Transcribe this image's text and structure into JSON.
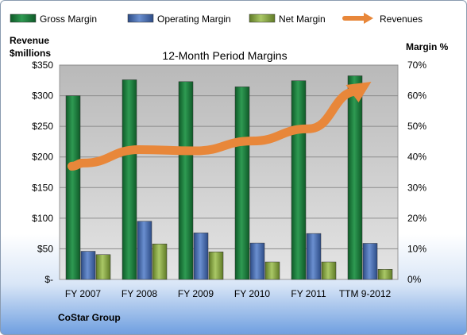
{
  "chart_data": {
    "type": "bar",
    "title": "12-Month Period Margins",
    "categories": [
      "FY 2007",
      "FY 2008",
      "FY 2009",
      "FY 2010",
      "FY 2011",
      "TTM 9-2012"
    ],
    "series": [
      {
        "name": "Gross Margin",
        "axis": "right",
        "unit": "%",
        "values": [
          60,
          65.2,
          64.6,
          62.9,
          64.9,
          66.5
        ],
        "color": "#1f7a3c"
      },
      {
        "name": "Operating Margin",
        "axis": "right",
        "unit": "%",
        "values": [
          9.2,
          19.0,
          15.2,
          11.9,
          15.0,
          11.8
        ],
        "color": "#4a6fb0"
      },
      {
        "name": "Net Margin",
        "axis": "right",
        "unit": "%",
        "values": [
          8.1,
          11.6,
          9.0,
          5.7,
          5.7,
          3.3
        ],
        "color": "#8fae4a"
      },
      {
        "name": "Revenues",
        "axis": "left",
        "type": "line",
        "unit": "$millions",
        "values": [
          190,
          212,
          210,
          226,
          246,
          315
        ],
        "color": "#e8873a"
      }
    ],
    "y_left": {
      "label_line1": "Revenue",
      "label_line2": "$millions",
      "min": 0,
      "max": 350,
      "step": 50,
      "ticks": [
        "$-",
        "$50",
        "$100",
        "$150",
        "$200",
        "$250",
        "$300",
        "$350"
      ]
    },
    "y_right": {
      "label": "Margin %",
      "min": 0,
      "max": 70,
      "step": 10,
      "ticks": [
        "0%",
        "10%",
        "20%",
        "30%",
        "40%",
        "50%",
        "60%",
        "70%"
      ]
    },
    "grid": true,
    "legend_position": "top",
    "footer": "CoStar Group"
  }
}
